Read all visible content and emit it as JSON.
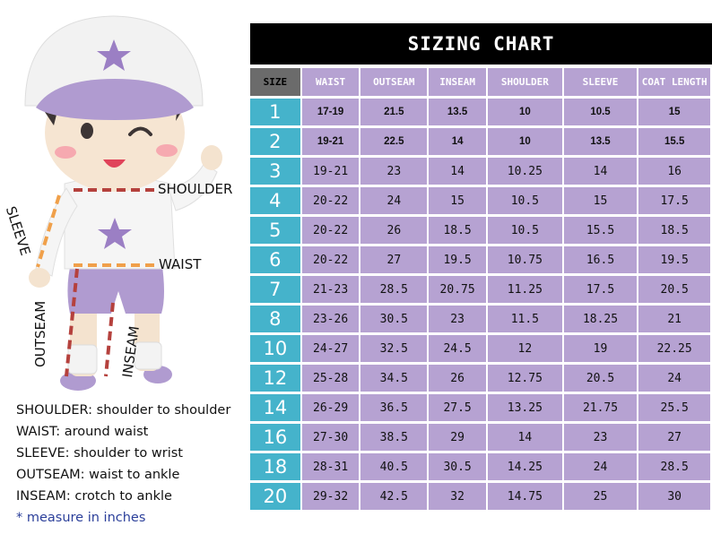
{
  "title": "SIZING CHART",
  "columns": [
    "SIZE",
    "WAIST",
    "OUTSEAM",
    "INSEAM",
    "SHOULDER",
    "SLEEVE",
    "COAT LENGTH"
  ],
  "rows": [
    {
      "size": "1",
      "waist": "17-19",
      "outseam": "21.5",
      "inseam": "13.5",
      "shoulder": "10",
      "sleeve": "10.5",
      "coat": "15",
      "bold": true
    },
    {
      "size": "2",
      "waist": "19-21",
      "outseam": "22.5",
      "inseam": "14",
      "shoulder": "10",
      "sleeve": "13.5",
      "coat": "15.5",
      "bold": true
    },
    {
      "size": "3",
      "waist": "19-21",
      "outseam": "23",
      "inseam": "14",
      "shoulder": "10.25",
      "sleeve": "14",
      "coat": "16"
    },
    {
      "size": "4",
      "waist": "20-22",
      "outseam": "24",
      "inseam": "15",
      "shoulder": "10.5",
      "sleeve": "15",
      "coat": "17.5"
    },
    {
      "size": "5",
      "waist": "20-22",
      "outseam": "26",
      "inseam": "18.5",
      "shoulder": "10.5",
      "sleeve": "15.5",
      "coat": "18.5"
    },
    {
      "size": "6",
      "waist": "20-22",
      "outseam": "27",
      "inseam": "19.5",
      "shoulder": "10.75",
      "sleeve": "16.5",
      "coat": "19.5"
    },
    {
      "size": "7",
      "waist": "21-23",
      "outseam": "28.5",
      "inseam": "20.75",
      "shoulder": "11.25",
      "sleeve": "17.5",
      "coat": "20.5"
    },
    {
      "size": "8",
      "waist": "23-26",
      "outseam": "30.5",
      "inseam": "23",
      "shoulder": "11.5",
      "sleeve": "18.25",
      "coat": "21"
    },
    {
      "size": "10",
      "waist": "24-27",
      "outseam": "32.5",
      "inseam": "24.5",
      "shoulder": "12",
      "sleeve": "19",
      "coat": "22.25"
    },
    {
      "size": "12",
      "waist": "25-28",
      "outseam": "34.5",
      "inseam": "26",
      "shoulder": "12.75",
      "sleeve": "20.5",
      "coat": "24"
    },
    {
      "size": "14",
      "waist": "26-29",
      "outseam": "36.5",
      "inseam": "27.5",
      "shoulder": "13.25",
      "sleeve": "21.75",
      "coat": "25.5"
    },
    {
      "size": "16",
      "waist": "27-30",
      "outseam": "38.5",
      "inseam": "29",
      "shoulder": "14",
      "sleeve": "23",
      "coat": "27"
    },
    {
      "size": "18",
      "waist": "28-31",
      "outseam": "40.5",
      "inseam": "30.5",
      "shoulder": "14.25",
      "sleeve": "24",
      "coat": "28.5"
    },
    {
      "size": "20",
      "waist": "29-32",
      "outseam": "42.5",
      "inseam": "32",
      "shoulder": "14.75",
      "sleeve": "25",
      "coat": "30"
    }
  ],
  "figure_labels": {
    "shoulder": "SHOULDER",
    "sleeve": "SLEEVE",
    "waist": "WAIST",
    "outseam": "OUTSEAM",
    "inseam": "INSEAM"
  },
  "legend": [
    "SHOULDER: shoulder to shoulder",
    "WAIST: around waist",
    "SLEEVE: shoulder to wrist",
    "OUTSEAM: waist to ankle",
    "INSEAM: crotch to ankle"
  ],
  "note": "* measure in inches",
  "colors": {
    "header": "#000000",
    "cell": "#b6a2d2",
    "size_cell": "#45b3cb",
    "size_head": "#6b6b6b",
    "note": "#2b3f9a"
  }
}
